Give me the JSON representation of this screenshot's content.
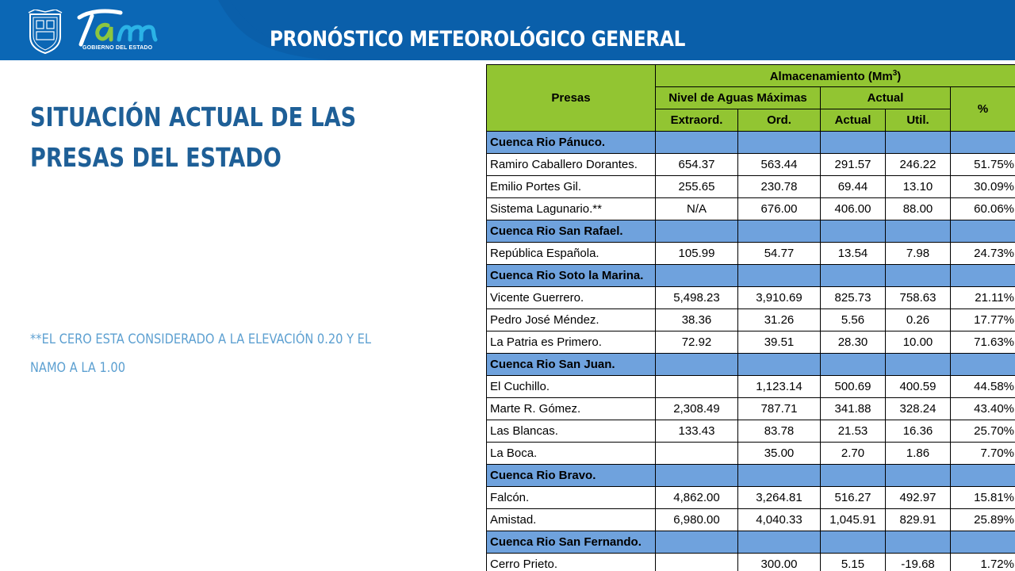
{
  "header": {
    "title": "PRONÓSTICO METEOROLÓGICO GENERAL",
    "logo_text": "Tam",
    "logo_subtitle": "GOBIERNO DEL ESTADO",
    "colors": {
      "background": "#0a5faa",
      "wave": "#0b67b5",
      "text": "#ffffff"
    }
  },
  "main": {
    "title_line1": "SITUACIÓN ACTUAL DE LAS",
    "title_line2": "PRESAS DEL ESTADO",
    "note_line1": "**EL CERO ESTA CONSIDERADO A LA ELEVACIÓN 0.20 Y EL",
    "note_line2": "NAMO A LA 1.00",
    "colors": {
      "title": "#1e5f97",
      "note": "#5da0d1"
    }
  },
  "table": {
    "colors": {
      "header_bg": "#92c532",
      "group_bg": "#6fa2dd",
      "border": "#000000"
    },
    "headers": {
      "presas": "Presas",
      "almacenamiento": "Almacenamiento (Mm",
      "almacenamiento_sup": "3",
      "almacenamiento_close": ")",
      "nivel": "Nivel de Aguas Máximas",
      "actual_group": "Actual",
      "pct": "%",
      "extraord": "Extraord.",
      "ord": "Ord.",
      "actual": "Actual",
      "util": "Util."
    },
    "groups": [
      {
        "name": "Cuenca Rio Pánuco.",
        "rows": [
          {
            "presa": "Ramiro Caballero Dorantes.",
            "extraord": "654.37",
            "ord": "563.44",
            "actual": "291.57",
            "util": "246.22",
            "pct": "51.75%"
          },
          {
            "presa": "Emilio Portes Gil.",
            "extraord": "255.65",
            "ord": "230.78",
            "actual": "69.44",
            "util": "13.10",
            "pct": "30.09%"
          },
          {
            "presa": "Sistema Lagunario.**",
            "extraord": "N/A",
            "ord": "676.00",
            "actual": "406.00",
            "util": "88.00",
            "pct": "60.06%"
          }
        ]
      },
      {
        "name": "Cuenca Rio San Rafael.",
        "rows": [
          {
            "presa": "República Española.",
            "extraord": "105.99",
            "ord": "54.77",
            "actual": "13.54",
            "util": "7.98",
            "pct": "24.73%"
          }
        ]
      },
      {
        "name": "Cuenca Rio Soto la Marina.",
        "rows": [
          {
            "presa": "Vicente Guerrero.",
            "extraord": "5,498.23",
            "ord": "3,910.69",
            "actual": "825.73",
            "util": "758.63",
            "pct": "21.11%"
          },
          {
            "presa": "Pedro José Méndez.",
            "extraord": "38.36",
            "ord": "31.26",
            "actual": "5.56",
            "util": "0.26",
            "pct": "17.77%"
          },
          {
            "presa": "La Patria es Primero.",
            "extraord": "72.92",
            "ord": "39.51",
            "actual": "28.30",
            "util": "10.00",
            "pct": "71.63%"
          }
        ]
      },
      {
        "name": "Cuenca Rio San Juan.",
        "rows": [
          {
            "presa": "El Cuchillo.",
            "extraord": "",
            "ord": "1,123.14",
            "actual": "500.69",
            "util": "400.59",
            "pct": "44.58%"
          },
          {
            "presa": "Marte R. Gómez.",
            "extraord": "2,308.49",
            "ord": "787.71",
            "actual": "341.88",
            "util": "328.24",
            "pct": "43.40%"
          },
          {
            "presa": "Las Blancas.",
            "extraord": "133.43",
            "ord": "83.78",
            "actual": "21.53",
            "util": "16.36",
            "pct": "25.70%"
          },
          {
            "presa": "La Boca.",
            "extraord": "",
            "ord": "35.00",
            "actual": "2.70",
            "util": "1.86",
            "pct": "7.70%"
          }
        ]
      },
      {
        "name": "Cuenca Rio Bravo.",
        "rows": [
          {
            "presa": "Falcón.",
            "extraord": "4,862.00",
            "ord": "3,264.81",
            "actual": "516.27",
            "util": "492.97",
            "pct": "15.81%"
          },
          {
            "presa": "Amistad.",
            "extraord": "6,980.00",
            "ord": "4,040.33",
            "actual": "1,045.91",
            "util": "829.91",
            "pct": "25.89%"
          }
        ]
      },
      {
        "name": "Cuenca Rio San Fernando.",
        "rows": [
          {
            "presa": "Cerro Prieto.",
            "extraord": "",
            "ord": "300.00",
            "actual": "5.15",
            "util": "-19.68",
            "pct": "1.72%"
          }
        ]
      }
    ]
  }
}
